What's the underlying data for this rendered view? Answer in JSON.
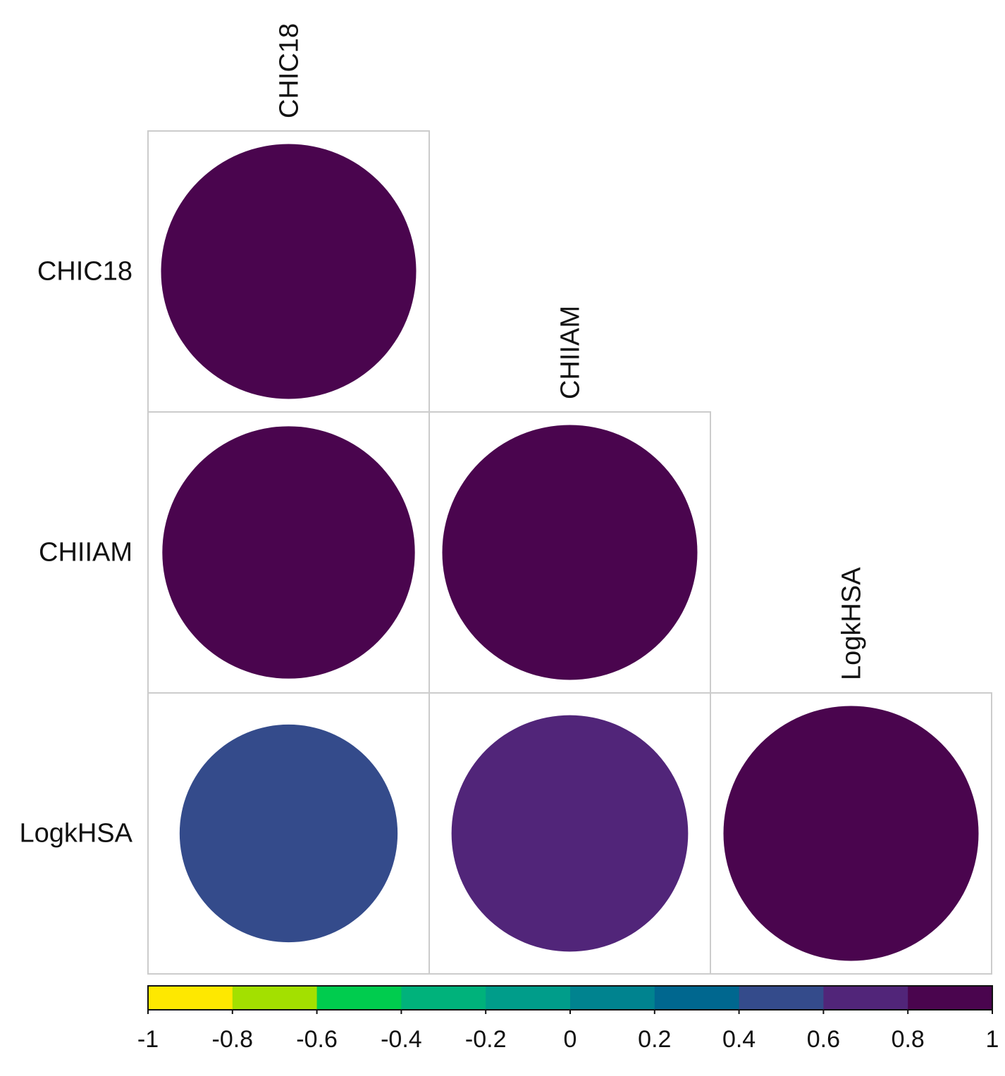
{
  "chart_data": {
    "type": "correlogram",
    "variables": [
      "CHIC18",
      "CHIIAM",
      "LogkHSA"
    ],
    "matrix": [
      [
        1.0,
        null,
        null
      ],
      [
        0.98,
        1.0,
        null
      ],
      [
        0.73,
        0.86,
        1.0
      ]
    ],
    "colors": {
      "1": "#4a054e",
      "0.98": "#4a054e",
      "0.86": "#512579",
      "0.73": "#344b8b"
    },
    "colorbar": {
      "range": [
        -1,
        1
      ],
      "ticks": [
        "-1",
        "-0.8",
        "-0.6",
        "-0.4",
        "-0.2",
        "0",
        "0.2",
        "0.4",
        "0.6",
        "0.8",
        "1"
      ],
      "bins": [
        "#fee800",
        "#a3e000",
        "#00cc4e",
        "#00b27b",
        "#009d8a",
        "#00838f",
        "#00678f",
        "#344b8b",
        "#512579",
        "#4a054e"
      ]
    },
    "grid_color": "#cccccc"
  }
}
